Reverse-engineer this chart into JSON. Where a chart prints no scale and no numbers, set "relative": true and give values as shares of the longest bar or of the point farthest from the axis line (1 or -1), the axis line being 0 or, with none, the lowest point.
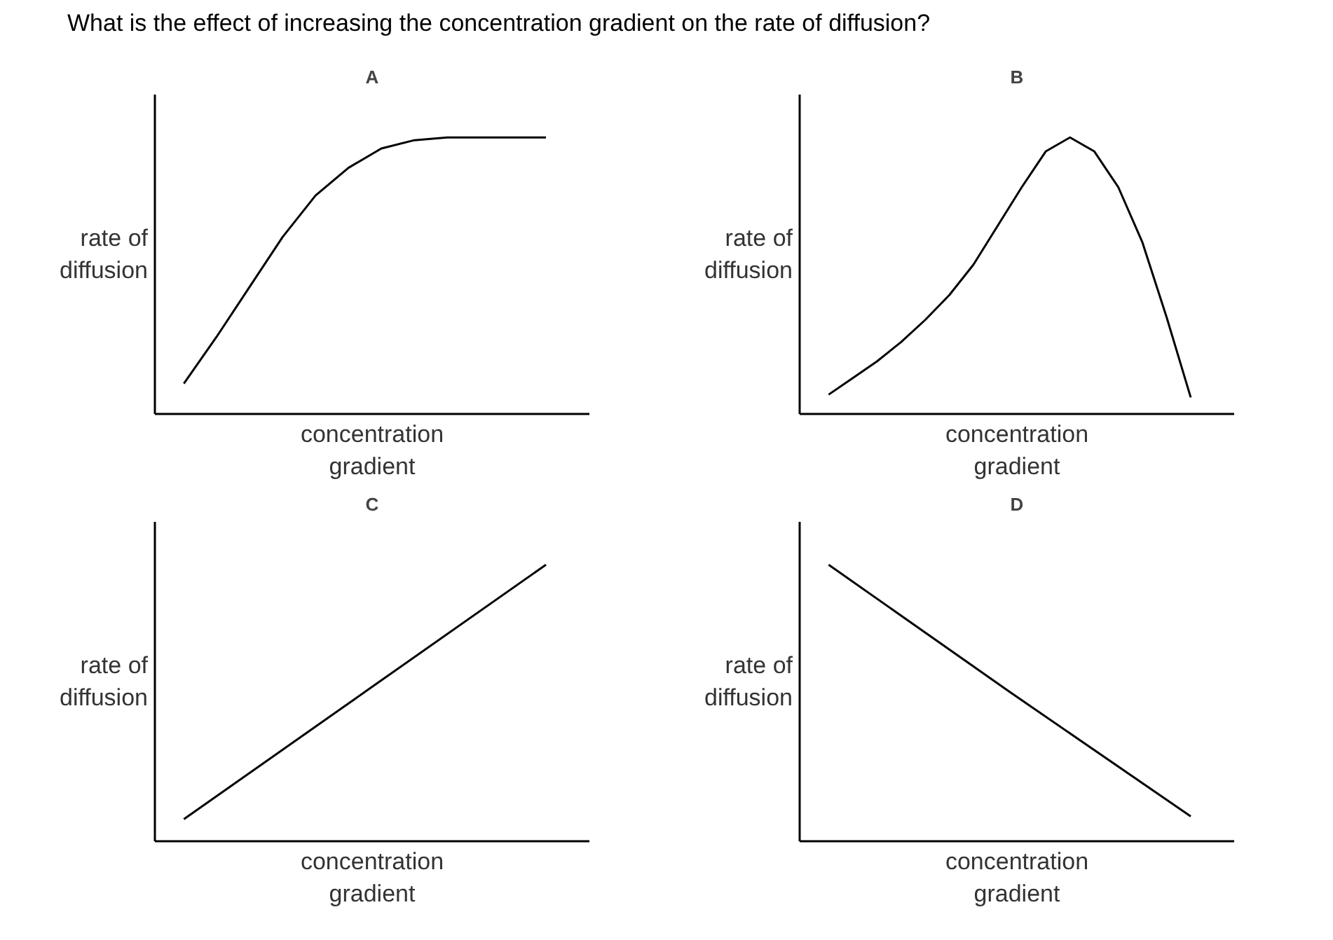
{
  "chart_data": [
    {
      "type": "line",
      "title": "A",
      "xlabel": "concentration gradient",
      "ylabel": "rate of diffusion",
      "relative": true,
      "annotations": [
        "What is the effect of increasing the concentration gradient on the rate of diffusion?"
      ],
      "categories": [
        null,
        null,
        null,
        null,
        null,
        null,
        null,
        null,
        null,
        null,
        null,
        null
      ],
      "series": [
        {
          "color": "#000000",
          "values": [
            0.11,
            0.28,
            0.46,
            0.64,
            0.79,
            0.89,
            0.96,
            0.99,
            1,
            1,
            1,
            1
          ]
        }
      ]
    },
    {
      "type": "line",
      "title": "B",
      "xlabel": "concentration gradient",
      "ylabel": "rate of diffusion",
      "relative": true,
      "categories": [
        null,
        null,
        null,
        null,
        null,
        null,
        null,
        null,
        null,
        null,
        null,
        null,
        null,
        null,
        null,
        null
      ],
      "series": [
        {
          "color": "#000000",
          "values": [
            0.07,
            0.13,
            0.19,
            0.26,
            0.34,
            0.43,
            0.54,
            0.68,
            0.82,
            0.95,
            1,
            0.95,
            0.82,
            0.62,
            0.35,
            0.06
          ]
        }
      ]
    },
    {
      "type": "line",
      "title": "C",
      "xlabel": "concentration gradient",
      "ylabel": "rate of diffusion",
      "relative": true,
      "categories": [
        null,
        null,
        null
      ],
      "series": [
        {
          "color": "#000000",
          "values": [
            0.08,
            0.54,
            1
          ]
        }
      ]
    },
    {
      "type": "line",
      "title": "D",
      "xlabel": "concentration gradient",
      "ylabel": "rate of diffusion",
      "relative": true,
      "categories": [
        null,
        null,
        null
      ],
      "series": [
        {
          "color": "#000000",
          "values": [
            1,
            0.54,
            0.09
          ]
        }
      ]
    }
  ]
}
